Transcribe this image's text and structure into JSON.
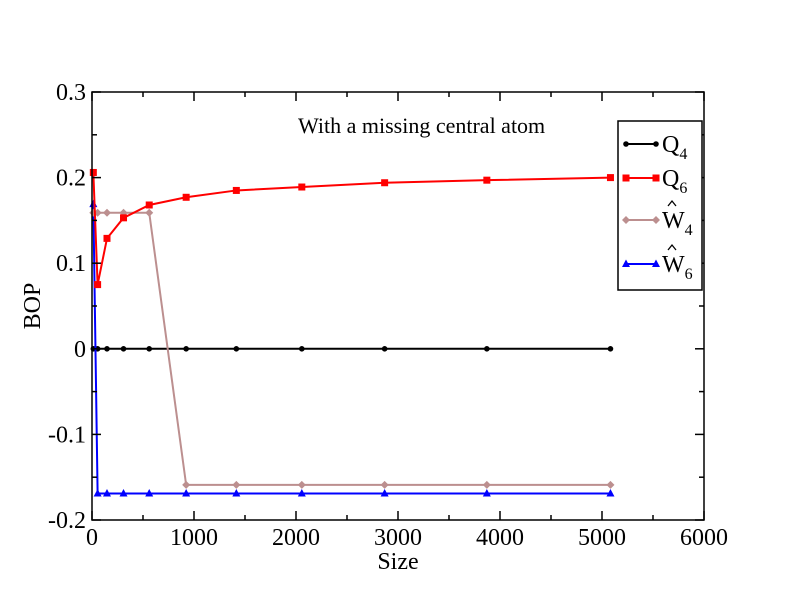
{
  "chart_data": {
    "type": "line",
    "title": "",
    "annotation": "With a missing central atom",
    "xlabel": "Size",
    "ylabel": "BOP",
    "xlim": [
      0,
      6000
    ],
    "ylim": [
      -0.2,
      0.3
    ],
    "xticks": [
      0,
      1000,
      2000,
      3000,
      4000,
      5000,
      6000
    ],
    "xtick_labels": [
      "0",
      "1000",
      "2000",
      "3000",
      "4000",
      "5000",
      "6000"
    ],
    "yticks": [
      -0.2,
      -0.1,
      0,
      0.1,
      0.2,
      0.3
    ],
    "ytick_labels": [
      "-0.2",
      "-0.1",
      "0",
      "0.1",
      "0.2",
      "0.3"
    ],
    "grid": false,
    "legend_position": "top-right",
    "series": [
      {
        "name": "Q4",
        "name_base": "Q",
        "name_sub": "4",
        "hat": false,
        "color": "#000000",
        "marker": "circle",
        "x": [
          13,
          55,
          147,
          309,
          561,
          923,
          1415,
          2057,
          2869,
          3871,
          5083
        ],
        "y": [
          0,
          0,
          0,
          0,
          0,
          0,
          0,
          0,
          0,
          0,
          0
        ]
      },
      {
        "name": "Q6",
        "name_base": "Q",
        "name_sub": "6",
        "hat": false,
        "color": "#ff0000",
        "marker": "square",
        "x": [
          13,
          55,
          147,
          309,
          561,
          923,
          1415,
          2057,
          2869,
          3871,
          5083
        ],
        "y": [
          0.206,
          0.075,
          0.129,
          0.153,
          0.168,
          0.177,
          0.185,
          0.189,
          0.194,
          0.197,
          0.2
        ]
      },
      {
        "name": "W4",
        "name_base": "W",
        "name_sub": "4",
        "hat": true,
        "color": "#bc8f8f",
        "marker": "diamond",
        "x": [
          13,
          55,
          147,
          309,
          561,
          923,
          1415,
          2057,
          2869,
          3871,
          5083
        ],
        "y": [
          0.159,
          0.159,
          0.159,
          0.159,
          0.159,
          -0.159,
          -0.159,
          -0.159,
          -0.159,
          -0.159,
          -0.159
        ]
      },
      {
        "name": "W6",
        "name_base": "W",
        "name_sub": "6",
        "hat": true,
        "color": "#0000ff",
        "marker": "triangle",
        "x": [
          13,
          55,
          147,
          309,
          561,
          923,
          1415,
          2057,
          2869,
          3871,
          5083
        ],
        "y": [
          0.169,
          -0.169,
          -0.169,
          -0.169,
          -0.169,
          -0.169,
          -0.169,
          -0.169,
          -0.169,
          -0.169,
          -0.169
        ]
      }
    ]
  }
}
